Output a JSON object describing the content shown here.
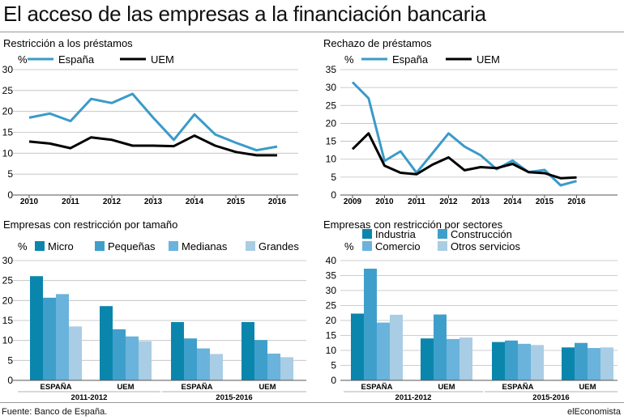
{
  "title": "El acceso de las empresas a la financiación bancaria",
  "source": "Fuente: Banco de España.",
  "brand": "elEconomista",
  "colors": {
    "espana": "#3a9bc8",
    "uem": "#000000",
    "micro": "#0a86ad",
    "pequenas": "#3f9fcb",
    "medianas": "#6ab3dc",
    "grandes": "#a9cde4",
    "industria": "#0a86ad",
    "construccion": "#3f9fcb",
    "comercio": "#6ab3dc",
    "otros": "#a9cde4"
  },
  "chart_data": [
    {
      "type": "line",
      "title": "Restricción a los préstamos",
      "ylabel": "%",
      "ylim": [
        0,
        30
      ],
      "yticks": [
        0,
        5,
        10,
        15,
        20,
        25,
        30
      ],
      "xlim": [
        2010,
        2016.5
      ],
      "xticks": [
        "2010",
        "2011",
        "2012",
        "2013",
        "2014",
        "2015",
        "2016"
      ],
      "series": [
        {
          "name": "España",
          "x": [
            2010,
            2010.5,
            2011,
            2011.5,
            2012,
            2012.5,
            2013,
            2013.5,
            2014,
            2014.5,
            2015,
            2015.5,
            2016,
            2016.5
          ],
          "values": [
            18.5,
            19.5,
            17.7,
            23,
            22,
            24.2,
            18.5,
            13.2,
            19.3,
            14.5,
            12.5,
            10.7,
            11.6,
            null
          ]
        },
        {
          "name": "UEM",
          "x": [
            2010,
            2010.5,
            2011,
            2011.5,
            2012,
            2012.5,
            2013,
            2013.5,
            2014,
            2014.5,
            2015,
            2015.5,
            2016,
            2016.5
          ],
          "values": [
            12.8,
            12.3,
            11.2,
            13.8,
            13.2,
            11.8,
            11.8,
            11.7,
            14.2,
            11.8,
            10.3,
            9.5,
            9.5,
            null
          ]
        }
      ],
      "legend": "top-left"
    },
    {
      "type": "line",
      "title": "Rechazo de préstamos",
      "ylabel": "%",
      "ylim": [
        0,
        35
      ],
      "yticks": [
        0,
        5,
        10,
        15,
        20,
        25,
        30,
        35
      ],
      "xlim": [
        2009,
        2016.3
      ],
      "xticks": [
        "2009",
        "2010",
        "2011",
        "2012",
        "2013",
        "2014",
        "2015",
        "2016"
      ],
      "series": [
        {
          "name": "España",
          "x": [
            2009,
            2009.5,
            2010,
            2010.5,
            2011,
            2011.5,
            2012,
            2012.5,
            2013,
            2013.5,
            2014,
            2014.5,
            2015,
            2015.5,
            2016
          ],
          "values": [
            31.5,
            27,
            9.5,
            12.2,
            6.2,
            11.7,
            17.2,
            13.5,
            11.1,
            7.2,
            9.6,
            6.4,
            7.0,
            2.7,
            3.9
          ]
        },
        {
          "name": "UEM",
          "x": [
            2009,
            2009.5,
            2010,
            2010.5,
            2011,
            2011.5,
            2012,
            2012.5,
            2013,
            2013.5,
            2014,
            2014.5,
            2015,
            2015.5,
            2016
          ],
          "values": [
            12.8,
            17.2,
            8.2,
            6.2,
            5.8,
            8.5,
            10.5,
            6.9,
            7.8,
            7.5,
            8.7,
            6.4,
            6.1,
            4.7,
            4.9
          ]
        }
      ],
      "legend": "top-left"
    },
    {
      "type": "bar",
      "title": "Empresas con restricción por tamaño",
      "ylabel": "%",
      "ylim": [
        0,
        30
      ],
      "yticks": [
        0,
        5,
        10,
        15,
        20,
        25,
        30
      ],
      "categories": [
        "ESPAÑA",
        "UEM",
        "ESPAÑA",
        "UEM"
      ],
      "groups": [
        "2011-2012",
        "2015-2016"
      ],
      "series": [
        {
          "name": "Micro",
          "values": [
            26.1,
            18.6,
            14.6,
            14.6
          ]
        },
        {
          "name": "Pequeñas",
          "values": [
            20.7,
            12.8,
            10.5,
            10.1
          ]
        },
        {
          "name": "Medianas",
          "values": [
            21.6,
            11.0,
            8.0,
            6.7
          ]
        },
        {
          "name": "Grandes",
          "values": [
            13.5,
            9.8,
            6.6,
            5.8
          ]
        }
      ],
      "legend": "top"
    },
    {
      "type": "bar",
      "title": "Empresas con restricción por sectores",
      "ylabel": "%",
      "ylim": [
        0,
        40
      ],
      "yticks": [
        0,
        5,
        10,
        15,
        20,
        25,
        30,
        35,
        40
      ],
      "categories": [
        "ESPAÑA",
        "UEM",
        "ESPAÑA",
        "UEM"
      ],
      "groups": [
        "2011-2012",
        "2015-2016"
      ],
      "series": [
        {
          "name": "Industria",
          "values": [
            22.3,
            14.0,
            12.8,
            11.0
          ]
        },
        {
          "name": "Construcción",
          "values": [
            37.3,
            22.0,
            13.3,
            12.5
          ]
        },
        {
          "name": "Comercio",
          "values": [
            19.3,
            13.8,
            12.2,
            10.8
          ]
        },
        {
          "name": "Otros servicios",
          "values": [
            21.9,
            14.3,
            11.8,
            11.0
          ]
        }
      ],
      "legend": "top"
    }
  ]
}
